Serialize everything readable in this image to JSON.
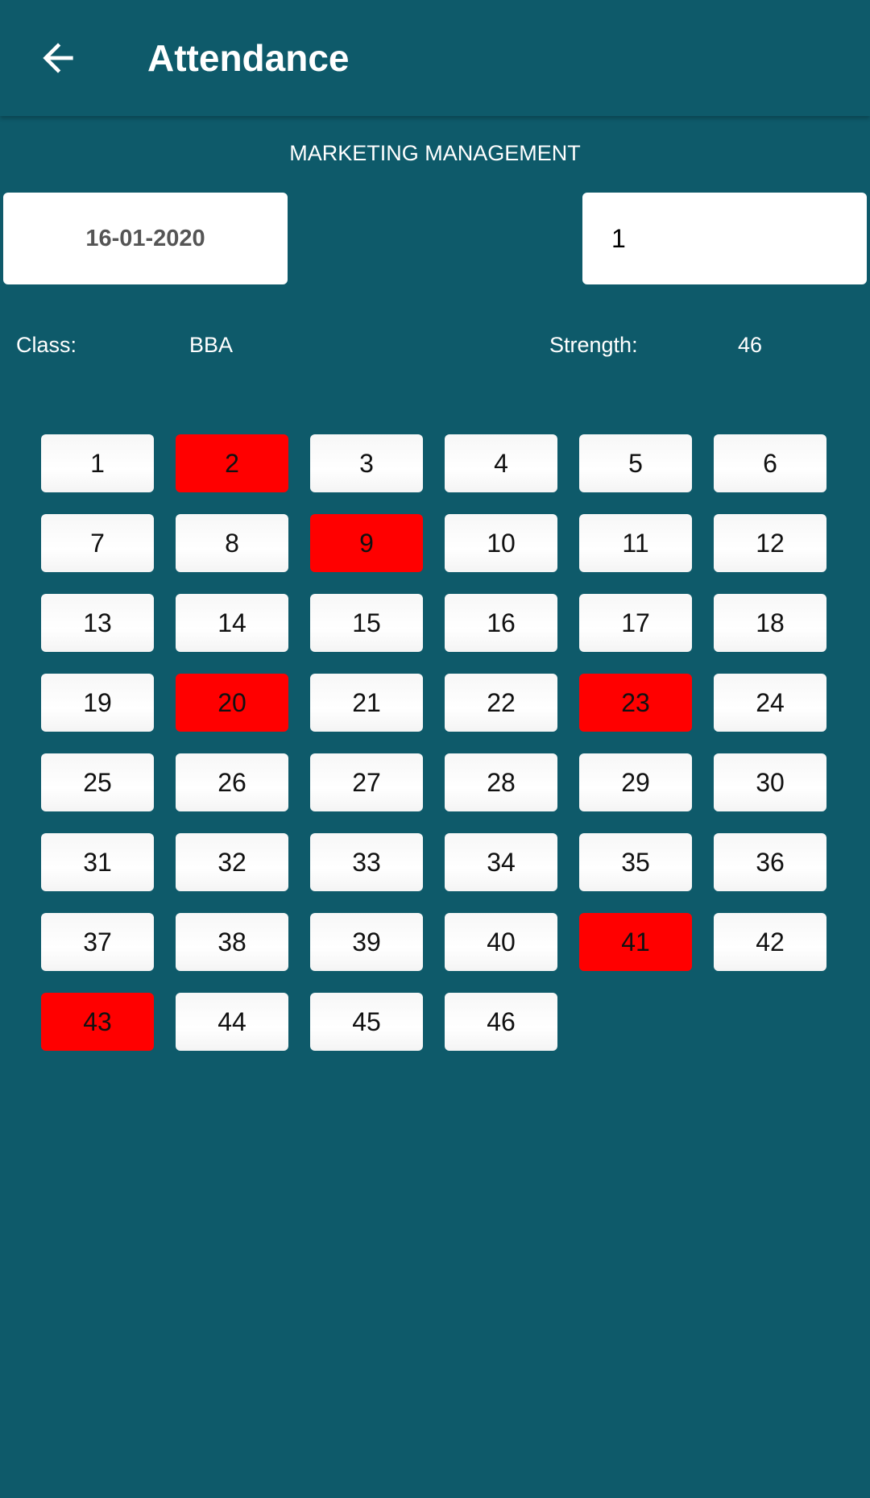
{
  "header": {
    "title": "Attendance",
    "back_icon": "arrow-left-icon"
  },
  "subject": "MARKETING MANAGEMENT",
  "date_field": {
    "value": "16-01-2020"
  },
  "period_field": {
    "value": "1"
  },
  "info": {
    "class_label": "Class:",
    "class_value": "BBA",
    "strength_label": "Strength:",
    "strength_value": "46"
  },
  "colors": {
    "background": "#0e5a6a",
    "present": "#ffffff",
    "absent": "#ff0000"
  },
  "students": {
    "total": 46,
    "absent": [
      2,
      9,
      20,
      23,
      41,
      43
    ]
  }
}
